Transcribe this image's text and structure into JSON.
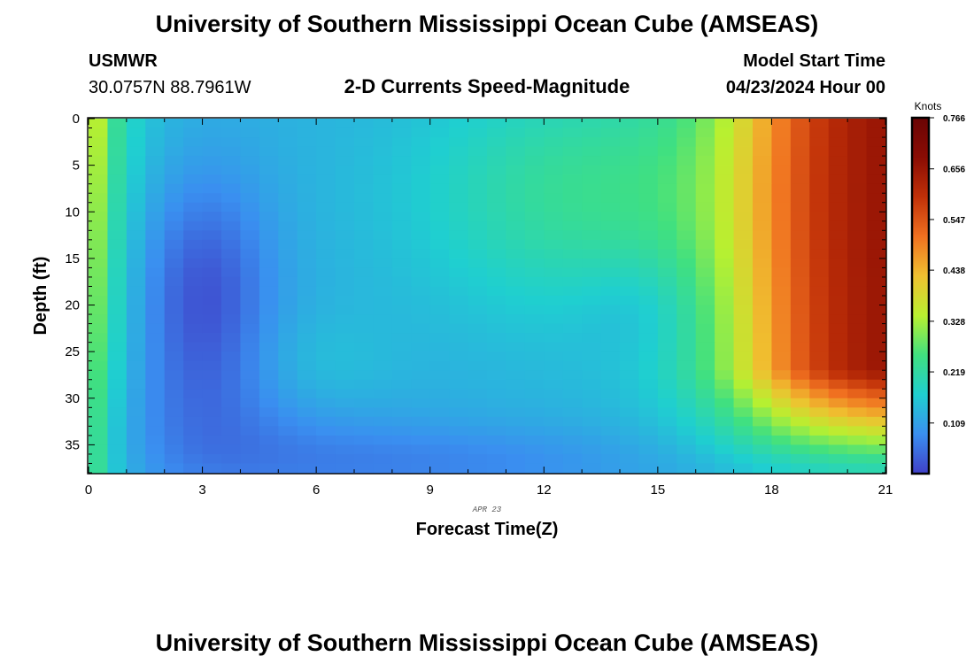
{
  "header": {
    "title": "University of Southern Mississippi Ocean Cube (AMSEAS)",
    "station": "USMWR",
    "coordinates": "30.0757N  88.7961W",
    "product": "2-D Currents Speed-Magnitude",
    "model_start_label": "Model Start Time",
    "model_start_value": "04/23/2024 Hour 00"
  },
  "footer": {
    "title": "University of Southern Mississippi Ocean Cube (AMSEAS)"
  },
  "chart_data": {
    "type": "heatmap",
    "title": "2-D Currents Speed-Magnitude",
    "xlabel": "Forecast Time(Z)",
    "ylabel": "Depth (ft)",
    "date_label": "APR 23",
    "xlim": [
      0,
      21
    ],
    "ylim": [
      0,
      38
    ],
    "y_inverted": true,
    "x_ticks": [
      "0",
      "3",
      "6",
      "9",
      "12",
      "15",
      "18",
      "21"
    ],
    "y_ticks": [
      "0",
      "5",
      "10",
      "15",
      "20",
      "25",
      "30",
      "35"
    ],
    "colorbar": {
      "unit": "Knots",
      "min": 0,
      "max": 0.766,
      "tick_labels": [
        "0.766",
        "0.656",
        "0.547",
        "0.438",
        "0.328",
        "0.219",
        "0.109"
      ],
      "colors": [
        "#4040c8",
        "#3a8ff0",
        "#1fcfd0",
        "#40e080",
        "#b8f030",
        "#f0c030",
        "#f07020",
        "#c03008",
        "#8a0c04",
        "#6a0404"
      ]
    },
    "grid_shape": [
      38,
      42
    ],
    "description": "Surface speed high (~0.35-0.45 kn) at hour 0, minimum (~0.0-0.05 kn) near hour 3 around 19 ft, moderate (~0.10-0.15 kn) mid-period, rising to ~0.75 kn at hour 21 in upper water column; lower layers 28-38 ft remain weaker late."
  }
}
